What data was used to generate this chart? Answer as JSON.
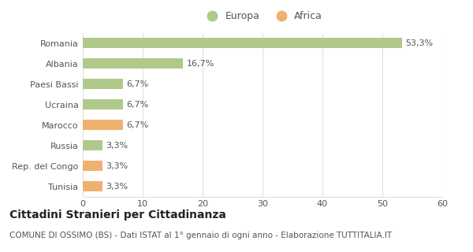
{
  "categories": [
    "Romania",
    "Albania",
    "Paesi Bassi",
    "Ucraina",
    "Marocco",
    "Russia",
    "Rep. del Congo",
    "Tunisia"
  ],
  "values": [
    53.3,
    16.7,
    6.7,
    6.7,
    6.7,
    3.3,
    3.3,
    3.3
  ],
  "labels": [
    "53,3%",
    "16,7%",
    "6,7%",
    "6,7%",
    "6,7%",
    "3,3%",
    "3,3%",
    "3,3%"
  ],
  "bar_colors": [
    "#aec98a",
    "#aec98a",
    "#aec98a",
    "#aec98a",
    "#f0b070",
    "#aec98a",
    "#f0b070",
    "#f0b070"
  ],
  "europa_color": "#aec98a",
  "africa_color": "#f0b070",
  "legend_europa": "Europa",
  "legend_africa": "Africa",
  "xlim": [
    0,
    60
  ],
  "xticks": [
    0,
    10,
    20,
    30,
    40,
    50,
    60
  ],
  "title": "Cittadini Stranieri per Cittadinanza",
  "subtitle": "COMUNE DI OSSIMO (BS) - Dati ISTAT al 1° gennaio di ogni anno - Elaborazione TUTTITALIA.IT",
  "background_color": "#ffffff",
  "grid_color": "#e0e0e0",
  "bar_height": 0.52,
  "title_fontsize": 10,
  "subtitle_fontsize": 7.5,
  "label_fontsize": 8,
  "tick_fontsize": 8,
  "legend_fontsize": 9
}
